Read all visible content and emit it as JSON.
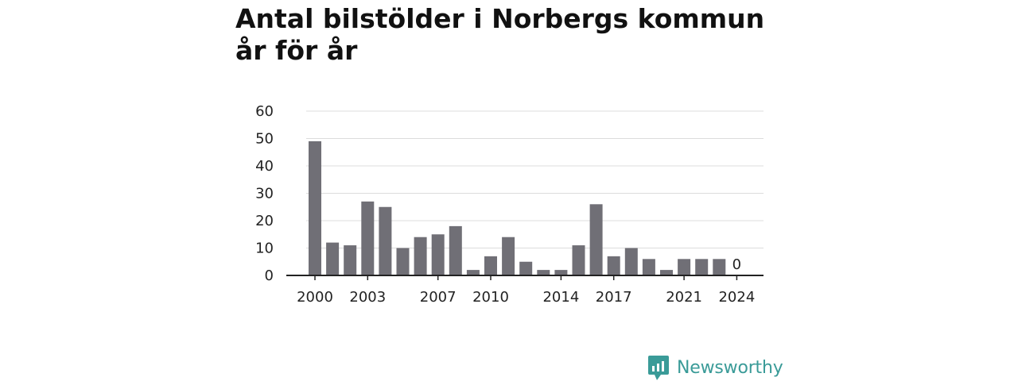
{
  "title": "Antal bilstölder i Norbergs kommun år för år",
  "brand": "Newsworthy",
  "colors": {
    "bar": "#706f76",
    "grid": "#dcdcdc",
    "axis": "#222222",
    "brand": "#3a9b98"
  },
  "chart_data": {
    "type": "bar",
    "title": "Antal bilstölder i Norbergs kommun år för år",
    "categories": [
      "2000",
      "2001",
      "2002",
      "2003",
      "2004",
      "2005",
      "2006",
      "2007",
      "2008",
      "2009",
      "2010",
      "2011",
      "2012",
      "2013",
      "2014",
      "2015",
      "2016",
      "2017",
      "2018",
      "2019",
      "2020",
      "2021",
      "2022",
      "2023",
      "2024"
    ],
    "values": [
      49,
      12,
      11,
      27,
      25,
      10,
      14,
      15,
      18,
      2,
      7,
      14,
      5,
      2,
      2,
      11,
      26,
      7,
      10,
      6,
      2,
      6,
      6,
      6,
      0
    ],
    "x_tick_labels": [
      "2000",
      "2003",
      "2007",
      "2010",
      "2014",
      "2017",
      "2021",
      "2024"
    ],
    "y_ticks": [
      0,
      10,
      20,
      30,
      40,
      50,
      60
    ],
    "ylim": [
      0,
      60
    ],
    "xlabel": "",
    "ylabel": "",
    "annotations": [
      {
        "category": "2024",
        "text": "0"
      }
    ],
    "grid": true,
    "legend": "none"
  }
}
